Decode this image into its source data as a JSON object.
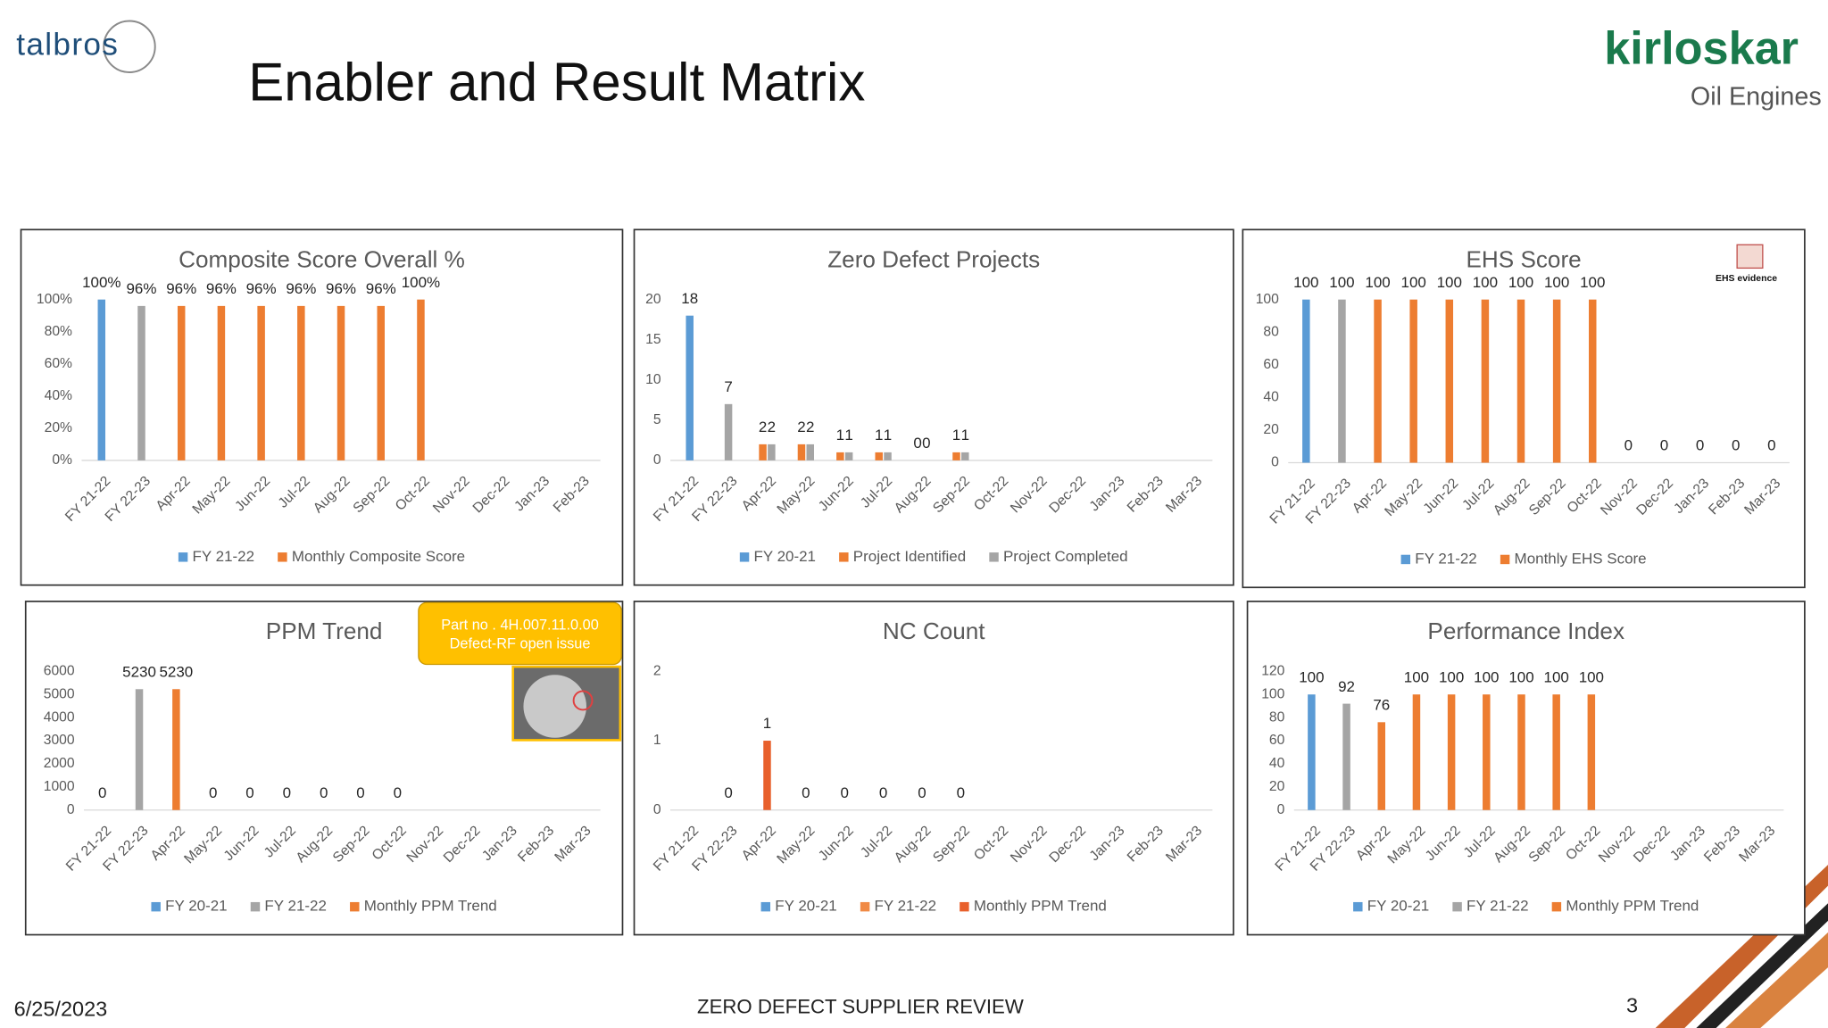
{
  "header": {
    "logo_left": "talbros",
    "title": "Enabler and Result Matrix",
    "logo_right": "kirloskar",
    "logo_right_sub": "Oil Engines"
  },
  "footer": {
    "date": "6/25/2023",
    "center": "ZERO DEFECT SUPPLIER REVIEW",
    "page": "3"
  },
  "chart_data": [
    {
      "type": "bar",
      "title": "Composite Score Overall %",
      "categories": [
        "FY 21-22",
        "FY 22-23",
        "Apr-22",
        "May-22",
        "Jun-22",
        "Jul-22",
        "Aug-22",
        "Sep-22",
        "Oct-22",
        "Nov-22",
        "Dec-22",
        "Jan-23",
        "Feb-23"
      ],
      "series": [
        {
          "name": "FY 21-22",
          "color": "#5b9bd5",
          "values": [
            100,
            null,
            null,
            null,
            null,
            null,
            null,
            null,
            null,
            null,
            null,
            null,
            null
          ],
          "value_labels": [
            "100%",
            null,
            null,
            null,
            null,
            null,
            null,
            null,
            null,
            null,
            null,
            null,
            null
          ]
        },
        {
          "color": "#a5a5a5",
          "values": [
            null,
            96,
            null,
            null,
            null,
            null,
            null,
            null,
            null,
            null,
            null,
            null,
            null
          ],
          "value_labels": [
            null,
            "96%",
            null,
            null,
            null,
            null,
            null,
            null,
            null,
            null,
            null,
            null,
            null
          ]
        },
        {
          "name": "Monthly Composite Score",
          "color": "#ed7d31",
          "values": [
            null,
            null,
            96,
            96,
            96,
            96,
            96,
            96,
            100,
            null,
            null,
            null,
            null
          ],
          "value_labels": [
            null,
            null,
            "96%",
            "96%",
            "96%",
            "96%",
            "96%",
            "96%",
            "100%",
            null,
            null,
            null,
            null
          ]
        }
      ],
      "ylim": [
        0,
        100
      ],
      "yticks": [
        {
          "value": 0,
          "label": "0%"
        },
        {
          "value": 20,
          "label": "20%"
        },
        {
          "value": 40,
          "label": "40%"
        },
        {
          "value": 60,
          "label": "60%"
        },
        {
          "value": 80,
          "label": "80%"
        },
        {
          "value": 100,
          "label": "100%"
        }
      ],
      "grid": false
    },
    {
      "type": "bar",
      "title": "Zero Defect Projects",
      "categories": [
        "FY 21-22",
        "FY 22-23",
        "Apr-22",
        "May-22",
        "Jun-22",
        "Jul-22",
        "Aug-22",
        "Sep-22",
        "Oct-22",
        "Nov-22",
        "Dec-22",
        "Jan-23",
        "Feb-23",
        "Mar-23"
      ],
      "series": [
        {
          "name": "FY 20-21",
          "color": "#5b9bd5",
          "values": [
            18,
            null,
            null,
            null,
            null,
            null,
            null,
            null,
            null,
            null,
            null,
            null,
            null,
            null
          ]
        },
        {
          "name": "Project Identified",
          "color": "#ed7d31",
          "values": [
            null,
            null,
            2,
            2,
            1,
            1,
            0,
            1,
            null,
            null,
            null,
            null,
            null,
            null
          ]
        },
        {
          "name": "Project Completed",
          "color": "#a5a5a5",
          "values": [
            null,
            7,
            2,
            2,
            1,
            1,
            0,
            1,
            null,
            null,
            null,
            null,
            null,
            null
          ]
        }
      ],
      "ylim": [
        0,
        20
      ],
      "yticks": [
        0,
        5,
        10,
        15,
        20
      ],
      "grid": false
    },
    {
      "type": "bar",
      "title": "EHS Score",
      "annotation": "EHS evidence",
      "categories": [
        "FY 21-22",
        "FY 22-23",
        "Apr-22",
        "May-22",
        "Jun-22",
        "Jul-22",
        "Aug-22",
        "Sep-22",
        "Oct-22",
        "Nov-22",
        "Dec-22",
        "Jan-23",
        "Feb-23",
        "Mar-23"
      ],
      "series": [
        {
          "name": "FY 21-22",
          "color": "#5b9bd5",
          "values": [
            100,
            null,
            null,
            null,
            null,
            null,
            null,
            null,
            null,
            null,
            null,
            null,
            null,
            null
          ]
        },
        {
          "color": "#a5a5a5",
          "values": [
            null,
            100,
            null,
            null,
            null,
            null,
            null,
            null,
            null,
            null,
            null,
            null,
            null,
            null
          ]
        },
        {
          "name": "Monthly EHS Score",
          "color": "#ed7d31",
          "values": [
            null,
            null,
            100,
            100,
            100,
            100,
            100,
            100,
            100,
            0,
            0,
            0,
            0,
            0
          ]
        }
      ],
      "ylim": [
        0,
        100
      ],
      "yticks": [
        0,
        20,
        40,
        60,
        80,
        100
      ],
      "grid": false
    },
    {
      "type": "bar",
      "title": "PPM Trend",
      "annotation": [
        "Part no . 4H.007.11.0.00",
        "Defect-RF open issue"
      ],
      "categories": [
        "FY 21-22",
        "FY 22-23",
        "Apr-22",
        "May-22",
        "Jun-22",
        "Jul-22",
        "Aug-22",
        "Sep-22",
        "Oct-22",
        "Nov-22",
        "Dec-22",
        "Jan-23",
        "Feb-23",
        "Mar-23"
      ],
      "series": [
        {
          "name": "FY 20-21",
          "color": "#5b9bd5",
          "values": [
            0,
            null,
            null,
            null,
            null,
            null,
            null,
            null,
            null,
            null,
            null,
            null,
            null,
            null
          ]
        },
        {
          "name": "FY 21-22",
          "color": "#a5a5a5",
          "values": [
            null,
            5230,
            null,
            null,
            null,
            null,
            null,
            null,
            null,
            null,
            null,
            null,
            null,
            null
          ]
        },
        {
          "name": "Monthly PPM Trend",
          "color": "#ed7d31",
          "values": [
            null,
            null,
            5230,
            0,
            0,
            0,
            0,
            0,
            0,
            null,
            null,
            null,
            null,
            null
          ]
        }
      ],
      "ylim": [
        0,
        6000
      ],
      "yticks": [
        0,
        1000,
        2000,
        3000,
        4000,
        5000,
        6000
      ],
      "grid": false
    },
    {
      "type": "bar",
      "title": "NC Count",
      "categories": [
        "FY 21-22",
        "FY 22-23",
        "Apr-22",
        "May-22",
        "Jun-22",
        "Jul-22",
        "Aug-22",
        "Sep-22",
        "Oct-22",
        "Nov-22",
        "Dec-22",
        "Jan-23",
        "Feb-23",
        "Mar-23"
      ],
      "series": [
        {
          "name": "FY 20-21",
          "color": "#5b9bd5",
          "values": [
            null,
            null,
            null,
            null,
            null,
            null,
            null,
            null,
            null,
            null,
            null,
            null,
            null,
            null
          ]
        },
        {
          "name": "FY 21-22",
          "color": "#f08a45",
          "values": [
            null,
            0,
            null,
            null,
            null,
            null,
            null,
            null,
            null,
            null,
            null,
            null,
            null,
            null
          ]
        },
        {
          "name": "Monthly PPM Trend",
          "color": "#e8602c",
          "values": [
            null,
            null,
            1,
            0,
            0,
            0,
            0,
            0,
            null,
            null,
            null,
            null,
            null,
            null
          ]
        }
      ],
      "ylim": [
        0,
        2
      ],
      "yticks": [
        0,
        1,
        2
      ],
      "grid": false
    },
    {
      "type": "bar",
      "title": "Performance Index",
      "categories": [
        "FY 21-22",
        "FY 22-23",
        "Apr-22",
        "May-22",
        "Jun-22",
        "Jul-22",
        "Aug-22",
        "Sep-22",
        "Oct-22",
        "Nov-22",
        "Dec-22",
        "Jan-23",
        "Feb-23",
        "Mar-23"
      ],
      "series": [
        {
          "name": "FY 20-21",
          "color": "#5b9bd5",
          "values": [
            100,
            null,
            null,
            null,
            null,
            null,
            null,
            null,
            null,
            null,
            null,
            null,
            null,
            null
          ]
        },
        {
          "name": "FY 21-22",
          "color": "#a5a5a5",
          "values": [
            null,
            92,
            null,
            null,
            null,
            null,
            null,
            null,
            null,
            null,
            null,
            null,
            null,
            null
          ]
        },
        {
          "name": "Monthly PPM Trend",
          "color": "#ed7d31",
          "values": [
            null,
            null,
            76,
            100,
            100,
            100,
            100,
            100,
            100,
            null,
            null,
            null,
            null,
            null
          ]
        }
      ],
      "ylim": [
        0,
        120
      ],
      "yticks": [
        0,
        20,
        40,
        60,
        80,
        100,
        120
      ],
      "grid": false
    }
  ]
}
